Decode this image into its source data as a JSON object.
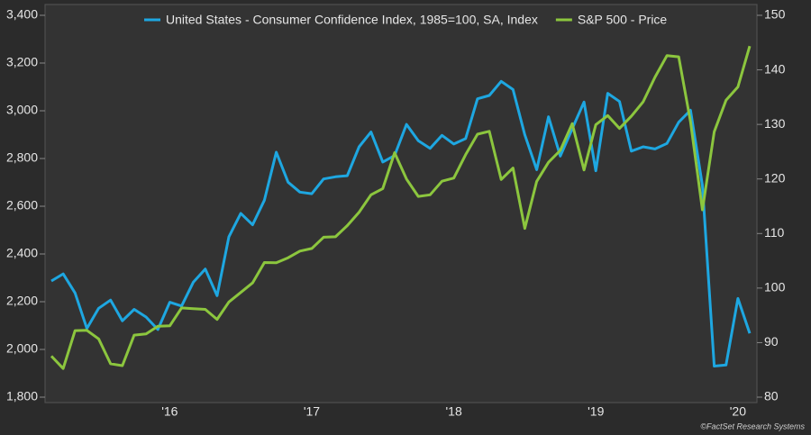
{
  "chart_data": {
    "type": "line",
    "categories": [
      null,
      null,
      null,
      null,
      null,
      null,
      null,
      null,
      null,
      null,
      "'16",
      null,
      null,
      null,
      null,
      null,
      null,
      null,
      null,
      null,
      null,
      null,
      "'17",
      null,
      null,
      null,
      null,
      null,
      null,
      null,
      null,
      null,
      null,
      null,
      "'18",
      null,
      null,
      null,
      null,
      null,
      null,
      null,
      null,
      null,
      null,
      null,
      "'19",
      null,
      null,
      null,
      null,
      null,
      null,
      null,
      null,
      null,
      null,
      null,
      "'20",
      null
    ],
    "series": [
      {
        "name": "United States - Consumer Confidence Index, 1985=100, SA, Index",
        "color": "#1ea7e1",
        "axis": "y2",
        "values": [
          101.3,
          102.6,
          99.1,
          92.6,
          96.3,
          97.8,
          94.0,
          96.1,
          94.7,
          92.4,
          97.4,
          96.7,
          101.1,
          103.5,
          98.6,
          109.4,
          113.7,
          111.6,
          116.1,
          124.9,
          119.4,
          117.6,
          117.3,
          120.0,
          120.4,
          120.6,
          125.9,
          128.6,
          123.1,
          124.3,
          130.0,
          127.0,
          125.6,
          128.0,
          126.4,
          127.4,
          134.7,
          135.3,
          137.9,
          136.4,
          128.1,
          121.7,
          131.4,
          124.2,
          129.2,
          134.1,
          121.5,
          135.7,
          134.2,
          125.1,
          125.9,
          125.5,
          126.5,
          130.4,
          132.6,
          118.8,
          85.7,
          85.9,
          98.1,
          91.7
        ]
      },
      {
        "name": "S&P 500 - Price",
        "color": "#8cc63e",
        "values": [
          1972,
          1920,
          2079,
          2080,
          2044,
          1940,
          1932,
          2060,
          2065,
          2097,
          2099,
          2174,
          2171,
          2168,
          2126,
          2199,
          2239,
          2279,
          2364,
          2363,
          2384,
          2412,
          2423,
          2470,
          2472,
          2519,
          2575,
          2648,
          2674,
          2824,
          2714,
          2641,
          2648,
          2705,
          2718,
          2816,
          2902,
          2914,
          2712,
          2760,
          2507,
          2704,
          2784,
          2834,
          2946,
          2752,
          2942,
          2980,
          2926,
          2977,
          3038,
          3141,
          3231,
          3226,
          2954,
          2585,
          2912,
          3044,
          3100,
          3271
        ]
      }
    ],
    "ylim": [
      1800,
      3400
    ],
    "yticks": [
      {
        "value": 1800,
        "label": "1,800"
      },
      {
        "value": 2000,
        "label": "2,000"
      },
      {
        "value": 2200,
        "label": "2,200"
      },
      {
        "value": 2400,
        "label": "2,400"
      },
      {
        "value": 2600,
        "label": "2,600"
      },
      {
        "value": 2800,
        "label": "2,800"
      },
      {
        "value": 3000,
        "label": "3,000"
      },
      {
        "value": 3200,
        "label": "3,200"
      },
      {
        "value": 3400,
        "label": "3,400"
      }
    ],
    "y2lim": [
      80,
      150
    ],
    "y2ticks": [
      80,
      90,
      100,
      110,
      120,
      130,
      140,
      150
    ],
    "legend": "top",
    "source": "©FactSet Research Systems"
  }
}
